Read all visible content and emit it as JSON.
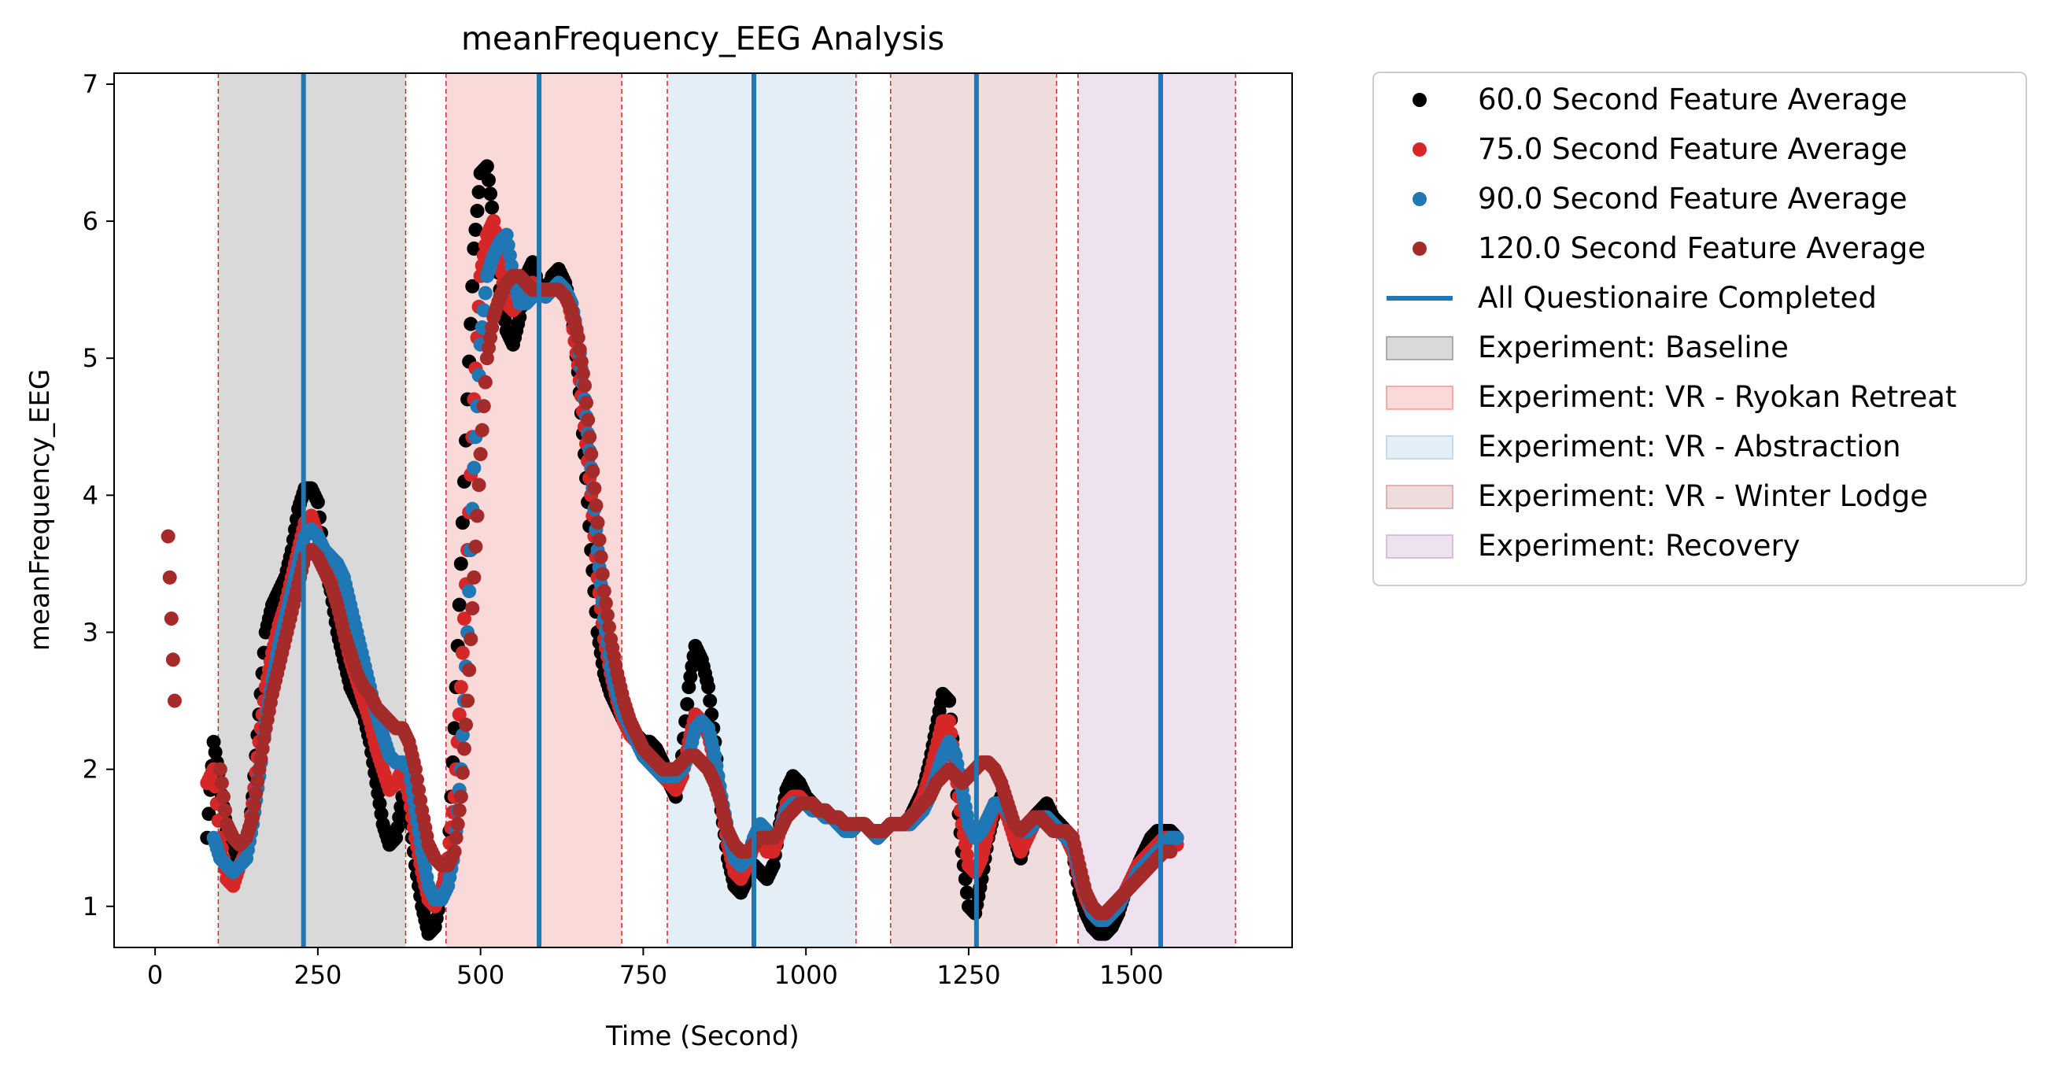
{
  "chart_data": {
    "type": "scatter",
    "title": "meanFrequency_EEG Analysis",
    "xlabel": "Time (Second)",
    "ylabel": "meanFrequency_EEG",
    "xlim": [
      -63,
      1747
    ],
    "ylim": [
      0.7,
      7.08
    ],
    "xticks": [
      0,
      250,
      500,
      750,
      1000,
      1250,
      1500
    ],
    "yticks": [
      1,
      2,
      3,
      4,
      5,
      6,
      7
    ],
    "grid": false,
    "legend_position": "outside-right",
    "questionnaire_line": {
      "name": "All Questionaire Completed",
      "color": "#1f77b4",
      "x": [
        228,
        590,
        920,
        1262,
        1545
      ]
    },
    "phases": [
      {
        "name": "Experiment: Baseline",
        "start": 97,
        "end": 385,
        "color": "#808080"
      },
      {
        "name": "Experiment: VR - Ryokan Retreat",
        "start": 447,
        "end": 717,
        "color": "#f08080"
      },
      {
        "name": "Experiment: VR - Abstraction",
        "start": 787,
        "end": 1077,
        "color": "#a6c8e4"
      },
      {
        "name": "Experiment: VR - Winter Lodge",
        "start": 1130,
        "end": 1385,
        "color": "#c98a8a"
      },
      {
        "name": "Experiment: Recovery",
        "start": 1418,
        "end": 1660,
        "color": "#c89ccc"
      }
    ],
    "phase_boundary_color": "#d62728",
    "x": [
      20,
      30,
      40,
      50,
      60,
      70,
      80,
      90,
      100,
      110,
      120,
      130,
      140,
      150,
      160,
      170,
      180,
      190,
      200,
      210,
      220,
      230,
      240,
      250,
      260,
      270,
      280,
      290,
      300,
      310,
      320,
      330,
      340,
      350,
      360,
      370,
      380,
      390,
      400,
      410,
      420,
      430,
      440,
      450,
      460,
      470,
      480,
      490,
      500,
      510,
      520,
      530,
      540,
      550,
      560,
      570,
      580,
      590,
      600,
      610,
      620,
      630,
      640,
      650,
      660,
      670,
      680,
      690,
      700,
      710,
      720,
      730,
      740,
      750,
      760,
      770,
      780,
      790,
      800,
      810,
      820,
      830,
      840,
      850,
      860,
      870,
      880,
      890,
      900,
      910,
      920,
      930,
      940,
      950,
      960,
      970,
      980,
      990,
      1000,
      1010,
      1020,
      1030,
      1040,
      1050,
      1060,
      1070,
      1080,
      1090,
      1100,
      1110,
      1120,
      1130,
      1140,
      1150,
      1160,
      1170,
      1180,
      1190,
      1200,
      1210,
      1220,
      1230,
      1240,
      1250,
      1260,
      1270,
      1280,
      1290,
      1300,
      1310,
      1320,
      1330,
      1340,
      1350,
      1360,
      1370,
      1380,
      1390,
      1400,
      1410,
      1420,
      1430,
      1440,
      1450,
      1460,
      1470,
      1480,
      1490,
      1500,
      1510,
      1520,
      1530,
      1540,
      1550,
      1560,
      1570,
      1580,
      1590,
      1600,
      1610,
      1620,
      1630,
      1640,
      1650,
      1660
    ],
    "series": [
      {
        "name": "60.0 Second Feature Average",
        "color": "#000000",
        "start": 80,
        "values": [
          null,
          null,
          null,
          null,
          null,
          null,
          1.5,
          2.2,
          1.9,
          1.55,
          1.45,
          1.3,
          1.35,
          1.8,
          2.4,
          3.0,
          3.2,
          3.3,
          3.4,
          3.6,
          3.9,
          4.05,
          4.05,
          3.95,
          3.5,
          3.3,
          3.0,
          2.8,
          2.6,
          2.5,
          2.4,
          2.2,
          1.9,
          1.6,
          1.45,
          1.5,
          1.8,
          1.7,
          1.3,
          1.0,
          0.8,
          0.85,
          1.1,
          1.3,
          2.3,
          3.5,
          4.7,
          5.8,
          6.35,
          6.4,
          6.0,
          5.5,
          5.2,
          5.1,
          5.3,
          5.6,
          5.7,
          5.5,
          5.45,
          5.6,
          5.65,
          5.55,
          5.35,
          4.9,
          4.3,
          3.6,
          3.0,
          2.7,
          2.55,
          2.45,
          2.35,
          2.3,
          2.25,
          2.2,
          2.2,
          2.15,
          2.05,
          1.9,
          1.8,
          2.1,
          2.6,
          2.9,
          2.8,
          2.6,
          2.2,
          1.7,
          1.35,
          1.15,
          1.1,
          1.2,
          1.3,
          1.25,
          1.2,
          1.3,
          1.6,
          1.85,
          1.95,
          1.9,
          1.8,
          1.75,
          1.7,
          1.7,
          1.65,
          1.6,
          1.6,
          1.55,
          1.6,
          1.6,
          1.55,
          1.5,
          1.55,
          1.6,
          1.6,
          1.6,
          1.65,
          1.75,
          1.85,
          2.05,
          2.3,
          2.55,
          2.5,
          1.95,
          1.4,
          1.0,
          0.95,
          1.2,
          1.5,
          1.7,
          1.8,
          1.7,
          1.5,
          1.35,
          1.55,
          1.65,
          1.7,
          1.75,
          1.65,
          1.6,
          1.55,
          1.4,
          1.1,
          0.95,
          0.85,
          0.8,
          0.8,
          0.85,
          0.95,
          1.1,
          1.2,
          1.3,
          1.4,
          1.5,
          1.55,
          1.55,
          1.55,
          1.5
        ]
      },
      {
        "name": "75.0 Second Feature Average",
        "color": "#d62728",
        "start": 80,
        "values": [
          null,
          null,
          null,
          null,
          null,
          null,
          1.9,
          2.0,
          1.5,
          1.2,
          1.15,
          1.3,
          1.4,
          1.75,
          2.2,
          2.6,
          2.85,
          3.05,
          3.2,
          3.4,
          3.6,
          3.8,
          3.85,
          3.7,
          3.5,
          3.4,
          3.25,
          3.0,
          2.8,
          2.65,
          2.5,
          2.35,
          2.15,
          2.0,
          1.85,
          1.9,
          2.0,
          1.8,
          1.5,
          1.25,
          1.05,
          1.0,
          1.1,
          1.35,
          1.8,
          2.6,
          3.6,
          4.7,
          5.6,
          5.9,
          6.0,
          5.7,
          5.4,
          5.35,
          5.4,
          5.5,
          5.55,
          5.5,
          5.45,
          5.5,
          5.55,
          5.5,
          5.3,
          4.95,
          4.5,
          4.0,
          3.4,
          2.95,
          2.7,
          2.5,
          2.35,
          2.25,
          2.2,
          2.1,
          2.05,
          2.0,
          1.95,
          1.9,
          1.85,
          1.95,
          2.2,
          2.4,
          2.35,
          2.25,
          2.05,
          1.75,
          1.45,
          1.25,
          1.2,
          1.3,
          1.45,
          1.5,
          1.4,
          1.4,
          1.55,
          1.75,
          1.8,
          1.8,
          1.75,
          1.75,
          1.7,
          1.7,
          1.65,
          1.6,
          1.6,
          1.55,
          1.6,
          1.6,
          1.55,
          1.55,
          1.55,
          1.6,
          1.6,
          1.6,
          1.6,
          1.7,
          1.8,
          1.95,
          2.15,
          2.35,
          2.35,
          2.0,
          1.6,
          1.3,
          1.25,
          1.35,
          1.55,
          1.75,
          1.75,
          1.65,
          1.5,
          1.4,
          1.5,
          1.6,
          1.65,
          1.65,
          1.6,
          1.55,
          1.5,
          1.4,
          1.2,
          1.05,
          0.95,
          0.9,
          0.9,
          0.95,
          1.0,
          1.1,
          1.2,
          1.3,
          1.35,
          1.4,
          1.45,
          1.5,
          1.5,
          1.45
        ]
      },
      {
        "name": "90.0 Second Feature Average",
        "color": "#1f77b4",
        "start": 80,
        "values": [
          null,
          null,
          null,
          null,
          null,
          null,
          null,
          1.5,
          1.35,
          1.3,
          1.25,
          1.3,
          1.35,
          1.6,
          1.95,
          2.35,
          2.65,
          2.9,
          3.1,
          3.3,
          3.5,
          3.7,
          3.75,
          3.7,
          3.6,
          3.55,
          3.5,
          3.4,
          3.2,
          3.0,
          2.8,
          2.6,
          2.4,
          2.25,
          2.1,
          2.05,
          2.05,
          2.0,
          1.7,
          1.4,
          1.15,
          1.05,
          1.05,
          1.15,
          1.4,
          2.0,
          3.0,
          4.2,
          5.1,
          5.6,
          5.75,
          5.85,
          5.9,
          5.6,
          5.4,
          5.4,
          5.45,
          5.5,
          5.45,
          5.5,
          5.55,
          5.5,
          5.4,
          5.15,
          4.7,
          4.2,
          3.6,
          3.1,
          2.75,
          2.55,
          2.4,
          2.3,
          2.2,
          2.1,
          2.05,
          2.0,
          1.95,
          1.95,
          1.95,
          2.0,
          2.1,
          2.3,
          2.35,
          2.3,
          2.1,
          1.8,
          1.55,
          1.35,
          1.3,
          1.35,
          1.5,
          1.6,
          1.55,
          1.5,
          1.55,
          1.7,
          1.75,
          1.75,
          1.75,
          1.7,
          1.7,
          1.65,
          1.65,
          1.6,
          1.55,
          1.55,
          1.6,
          1.6,
          1.55,
          1.5,
          1.55,
          1.6,
          1.6,
          1.6,
          1.6,
          1.65,
          1.7,
          1.8,
          1.95,
          2.1,
          2.2,
          2.1,
          1.85,
          1.6,
          1.5,
          1.55,
          1.65,
          1.75,
          1.75,
          1.7,
          1.6,
          1.55,
          1.55,
          1.6,
          1.65,
          1.65,
          1.6,
          1.55,
          1.5,
          1.45,
          1.25,
          1.1,
          0.95,
          0.9,
          0.9,
          0.95,
          1.0,
          1.1,
          1.15,
          1.25,
          1.3,
          1.35,
          1.4,
          1.45,
          1.5,
          1.5
        ]
      },
      {
        "name": "120.0 Second Feature Average",
        "color": "#a52a2a",
        "start": 20,
        "values": [
          3.7,
          2.5,
          null,
          null,
          null,
          null,
          null,
          null,
          2.0,
          1.6,
          1.5,
          1.45,
          1.5,
          1.65,
          2.0,
          2.3,
          2.55,
          2.75,
          2.95,
          3.15,
          3.35,
          3.55,
          3.6,
          3.55,
          3.45,
          3.35,
          3.2,
          3.0,
          2.85,
          2.7,
          2.6,
          2.55,
          2.45,
          2.4,
          2.35,
          2.3,
          2.3,
          2.2,
          2.0,
          1.7,
          1.45,
          1.35,
          1.3,
          1.3,
          1.4,
          1.8,
          2.5,
          3.4,
          4.3,
          5.0,
          5.3,
          5.45,
          5.55,
          5.6,
          5.6,
          5.55,
          5.5,
          5.5,
          5.5,
          5.5,
          5.5,
          5.45,
          5.35,
          5.15,
          4.8,
          4.3,
          3.8,
          3.3,
          2.95,
          2.7,
          2.5,
          2.35,
          2.25,
          2.15,
          2.1,
          2.05,
          2.0,
          2.0,
          2.0,
          2.05,
          2.1,
          2.1,
          2.05,
          2.0,
          1.9,
          1.75,
          1.55,
          1.45,
          1.4,
          1.4,
          1.45,
          1.5,
          1.5,
          1.5,
          1.55,
          1.65,
          1.7,
          1.75,
          1.75,
          1.75,
          1.7,
          1.7,
          1.65,
          1.65,
          1.6,
          1.6,
          1.6,
          1.6,
          1.55,
          1.55,
          1.55,
          1.6,
          1.6,
          1.6,
          1.65,
          1.7,
          1.75,
          1.8,
          1.9,
          1.95,
          2.0,
          1.95,
          1.9,
          1.95,
          2.0,
          2.05,
          2.05,
          2.0,
          1.9,
          1.75,
          1.6,
          1.55,
          1.6,
          1.65,
          1.65,
          1.6,
          1.55,
          1.55,
          1.55,
          1.5,
          1.3,
          1.1,
          1.0,
          0.95,
          0.95,
          1.0,
          1.05,
          1.1,
          1.15,
          1.2,
          1.25,
          1.3,
          1.35,
          1.4,
          1.4
        ]
      }
    ]
  }
}
